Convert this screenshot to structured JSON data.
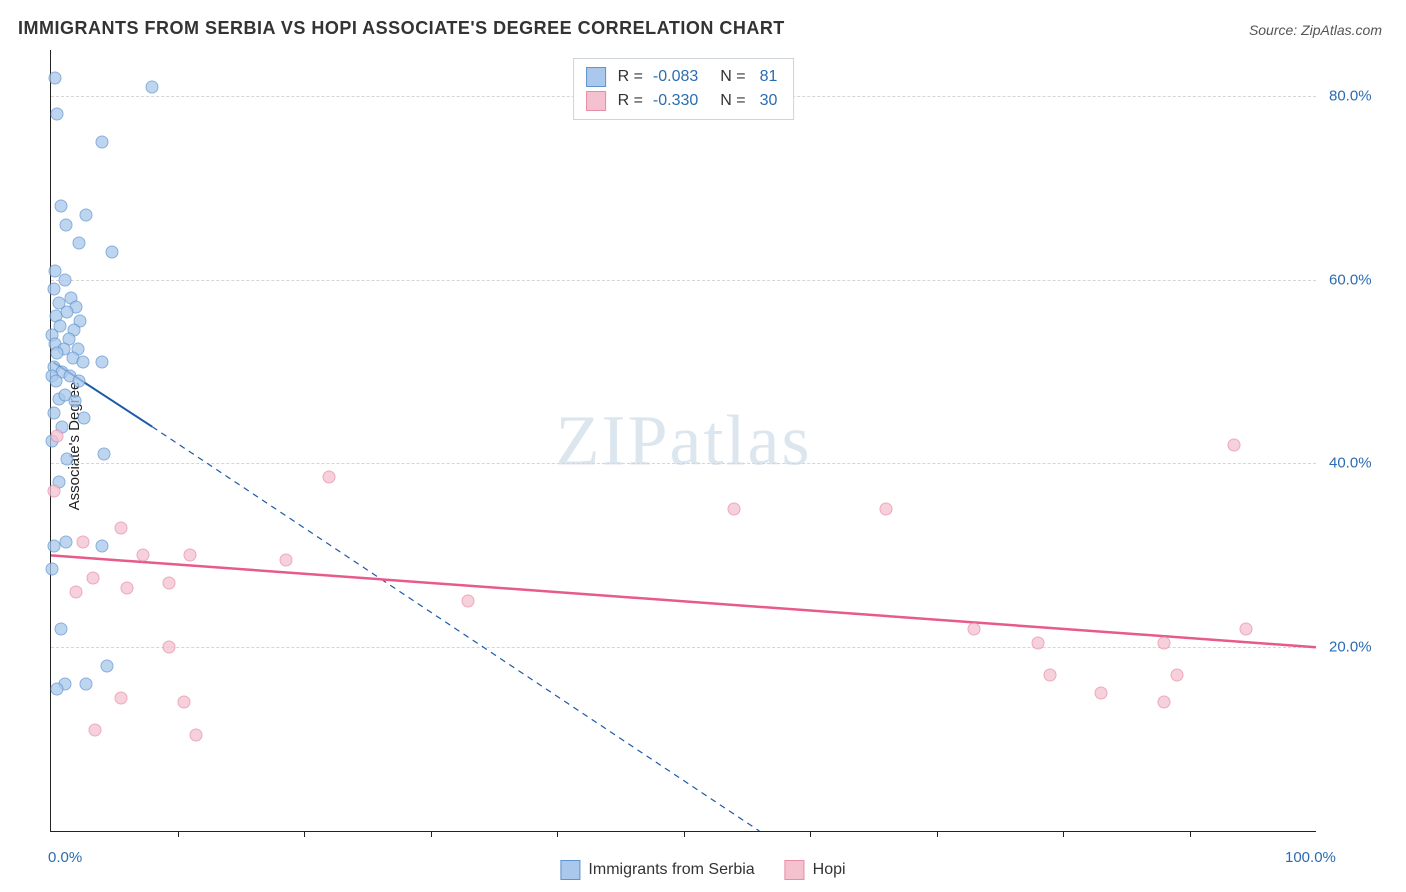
{
  "title": "IMMIGRANTS FROM SERBIA VS HOPI ASSOCIATE'S DEGREE CORRELATION CHART",
  "source": "Source: ZipAtlas.com",
  "ylabel": "Associate's Degree",
  "watermark_a": "ZIP",
  "watermark_b": "atlas",
  "chart": {
    "type": "scatter",
    "background_color": "#ffffff",
    "grid_color": "#d5d5d5",
    "axis_color": "#222222",
    "xlim": [
      0,
      100
    ],
    "ylim": [
      0,
      85
    ],
    "ytick_values": [
      20,
      40,
      60,
      80
    ],
    "ytick_labels": [
      "20.0%",
      "40.0%",
      "60.0%",
      "80.0%"
    ],
    "ytick_color": "#2b6cb0",
    "xtick_positions_pct": [
      10,
      20,
      30,
      40,
      50,
      60,
      70,
      80,
      90
    ],
    "xlim_labels": {
      "min": "0.0%",
      "max": "100.0%"
    },
    "series": [
      {
        "id": "serbia",
        "label": "Immigrants from Serbia",
        "fill": "#a9c8ec",
        "stroke": "#5f94cf",
        "point_opacity": 0.75,
        "marker_radius": 6.5,
        "r_value": "-0.083",
        "n_value": "81",
        "trend": {
          "solid": {
            "x1": 0.2,
            "y1": 51,
            "x2": 8,
            "y2": 44
          },
          "dashed": {
            "x1": 8,
            "y1": 44,
            "x2": 56,
            "y2": 0
          },
          "color": "#1c5ba8",
          "width": 2
        },
        "points": [
          [
            0.3,
            82
          ],
          [
            8,
            81
          ],
          [
            0.5,
            78
          ],
          [
            4,
            75
          ],
          [
            0.8,
            68
          ],
          [
            2.8,
            67
          ],
          [
            1.2,
            66
          ],
          [
            2.2,
            64
          ],
          [
            4.8,
            63
          ],
          [
            0.3,
            61
          ],
          [
            1.1,
            60
          ],
          [
            0.2,
            59
          ],
          [
            1.6,
            58
          ],
          [
            0.6,
            57.5
          ],
          [
            2.0,
            57
          ],
          [
            1.3,
            56.5
          ],
          [
            0.4,
            56
          ],
          [
            2.3,
            55.5
          ],
          [
            0.7,
            55
          ],
          [
            1.8,
            54.5
          ],
          [
            0.1,
            54
          ],
          [
            1.4,
            53.5
          ],
          [
            0.3,
            53
          ],
          [
            1.0,
            52.5
          ],
          [
            2.1,
            52.5
          ],
          [
            0.5,
            52
          ],
          [
            1.7,
            51.5
          ],
          [
            2.5,
            51
          ],
          [
            0.2,
            50.5
          ],
          [
            4.0,
            51
          ],
          [
            0.9,
            50
          ],
          [
            0.1,
            49.5
          ],
          [
            1.5,
            49.5
          ],
          [
            0.4,
            49
          ],
          [
            2.2,
            49
          ],
          [
            0.6,
            47
          ],
          [
            1.1,
            47.5
          ],
          [
            1.9,
            46.8
          ],
          [
            0.2,
            45.5
          ],
          [
            2.6,
            45
          ],
          [
            0.9,
            44
          ],
          [
            0.1,
            42.5
          ],
          [
            1.3,
            40.5
          ],
          [
            4.2,
            41
          ],
          [
            0.6,
            38
          ],
          [
            0.2,
            31
          ],
          [
            1.2,
            31.5
          ],
          [
            4.0,
            31
          ],
          [
            0.1,
            28.5
          ],
          [
            0.8,
            22
          ],
          [
            4.4,
            18
          ],
          [
            1.1,
            16
          ],
          [
            2.8,
            16
          ],
          [
            0.5,
            15.5
          ]
        ]
      },
      {
        "id": "hopi",
        "label": "Hopi",
        "fill": "#f4c1cf",
        "stroke": "#e78da8",
        "point_opacity": 0.75,
        "marker_radius": 6.5,
        "r_value": "-0.330",
        "n_value": "30",
        "trend": {
          "solid": {
            "x1": 0,
            "y1": 30,
            "x2": 100,
            "y2": 20
          },
          "color": "#e75a8a",
          "width": 2.5
        },
        "points": [
          [
            0.5,
            43
          ],
          [
            22,
            38.5
          ],
          [
            0.2,
            37
          ],
          [
            54,
            35
          ],
          [
            66,
            35
          ],
          [
            5.5,
            33
          ],
          [
            2.5,
            31.5
          ],
          [
            7.3,
            30
          ],
          [
            11,
            30
          ],
          [
            18.6,
            29.5
          ],
          [
            3.3,
            27.5
          ],
          [
            9.3,
            27
          ],
          [
            6,
            26.5
          ],
          [
            2,
            26
          ],
          [
            33,
            25
          ],
          [
            9.3,
            20
          ],
          [
            73,
            22
          ],
          [
            78,
            20.5
          ],
          [
            88,
            20.5
          ],
          [
            79,
            17
          ],
          [
            89,
            17
          ],
          [
            93.5,
            42
          ],
          [
            94.5,
            22
          ],
          [
            83,
            15
          ],
          [
            88,
            14
          ],
          [
            5.5,
            14.5
          ],
          [
            10.5,
            14
          ],
          [
            3.5,
            11
          ],
          [
            11.5,
            10.5
          ]
        ]
      }
    ]
  },
  "legend_bottom": [
    {
      "swatch_fill": "#a9c8ec",
      "swatch_stroke": "#5f94cf",
      "label": "Immigrants from Serbia"
    },
    {
      "swatch_fill": "#f4c1cf",
      "swatch_stroke": "#e78da8",
      "label": "Hopi"
    }
  ]
}
